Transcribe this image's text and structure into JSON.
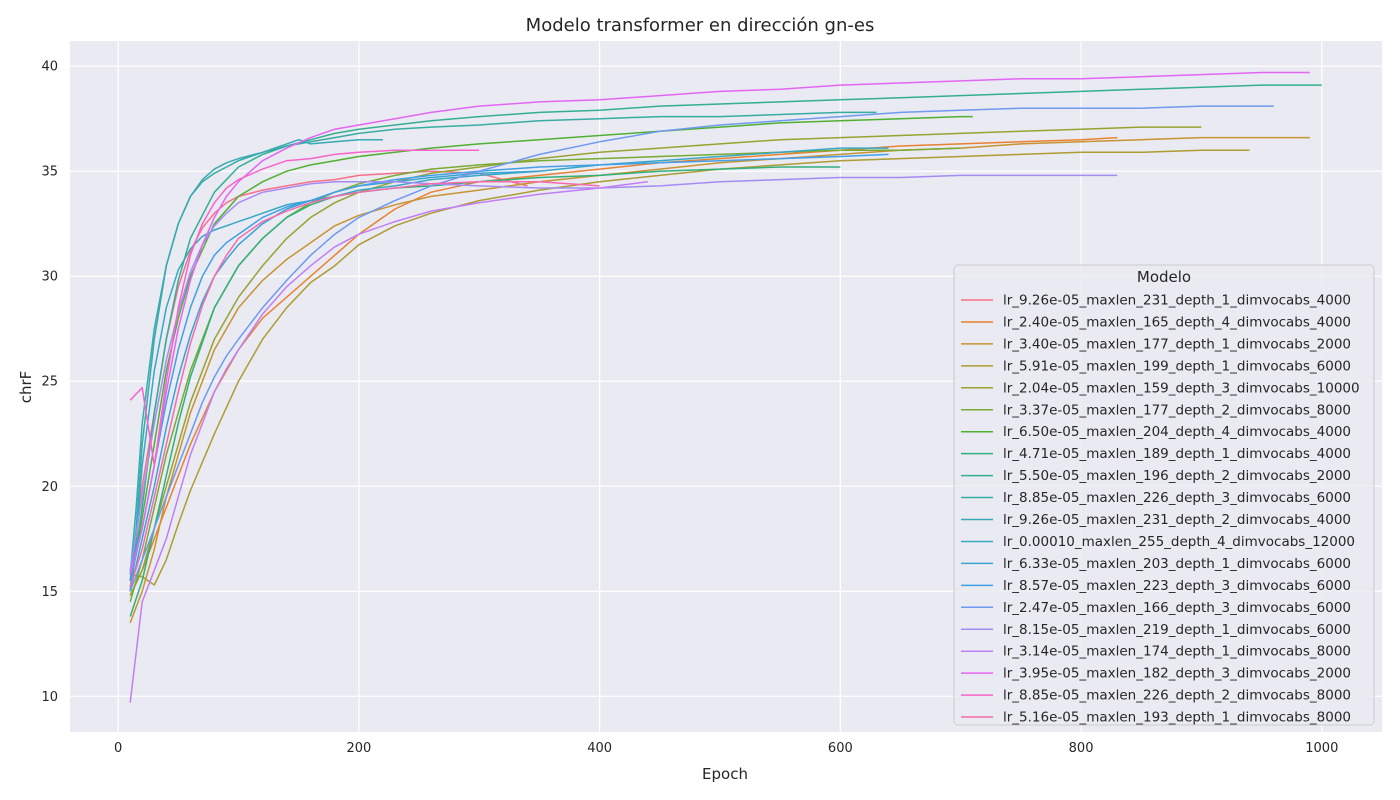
{
  "chart_data": {
    "type": "line",
    "title": "Modelo transformer en dirección gn-es",
    "xlabel": "Epoch",
    "ylabel": "chrF",
    "xlim": [
      -40,
      1050
    ],
    "ylim": [
      8.3,
      41.2
    ],
    "xticks": [
      0,
      200,
      400,
      600,
      800,
      1000
    ],
    "yticks": [
      10,
      15,
      20,
      25,
      30,
      35,
      40
    ],
    "grid": true,
    "legend_title": "Modelo",
    "legend_position": "lower-right",
    "series": [
      {
        "name": "lr_9.26e-05_maxlen_231_depth_1_dimvocabs_4000",
        "color": "#f77189",
        "x": [
          10,
          15,
          20,
          30,
          40,
          50,
          60,
          70,
          80,
          90,
          100,
          120,
          140,
          160,
          180,
          200,
          230,
          260,
          300,
          340
        ],
        "y": [
          15.5,
          17.5,
          20,
          23.5,
          27,
          29.5,
          31.2,
          32.3,
          33,
          33.5,
          33.8,
          34.1,
          34.3,
          34.5,
          34.6,
          34.8,
          34.9,
          35.0,
          34.9,
          34.3
        ]
      },
      {
        "name": "lr_2.40e-05_maxlen_165_depth_4_dimvocabs_4000",
        "color": "#e98230",
        "x": [
          10,
          20,
          30,
          40,
          50,
          60,
          80,
          100,
          120,
          140,
          160,
          180,
          200,
          230,
          260,
          300,
          350,
          400,
          450,
          500,
          550,
          600,
          650,
          700,
          750,
          800,
          830
        ],
        "y": [
          14.8,
          16,
          17.5,
          19,
          20.5,
          22,
          24.5,
          26.5,
          28,
          29,
          30,
          31,
          32,
          33.2,
          34,
          34.5,
          34.8,
          35.1,
          35.4,
          35.6,
          35.8,
          36,
          36.2,
          36.3,
          36.4,
          36.5,
          36.6
        ]
      },
      {
        "name": "lr_3.40e-05_maxlen_177_depth_1_dimvocabs_2000",
        "color": "#c69432",
        "x": [
          10,
          20,
          30,
          40,
          50,
          60,
          80,
          100,
          120,
          140,
          160,
          180,
          200,
          230,
          260,
          300,
          350,
          400,
          450,
          500,
          550,
          600,
          650,
          700,
          750,
          800,
          850,
          900,
          950,
          990
        ],
        "y": [
          13.5,
          15,
          17,
          19.5,
          21.5,
          23.5,
          26.5,
          28.5,
          29.8,
          30.8,
          31.6,
          32.4,
          32.9,
          33.4,
          33.8,
          34.1,
          34.5,
          34.8,
          35.1,
          35.4,
          35.6,
          35.8,
          36,
          36.1,
          36.3,
          36.4,
          36.5,
          36.6,
          36.6,
          36.6
        ]
      },
      {
        "name": "lr_5.91e-05_maxlen_199_depth_1_dimvocabs_6000",
        "color": "#ad9c31",
        "x": [
          10,
          20,
          30,
          40,
          50,
          60,
          80,
          100,
          120,
          140,
          160,
          180,
          200,
          230,
          260,
          300,
          350,
          400,
          450,
          500,
          550,
          600,
          650,
          700,
          750,
          800,
          850,
          900,
          940
        ],
        "y": [
          15.8,
          15.7,
          15.3,
          16.5,
          18.2,
          19.8,
          22.5,
          25,
          27,
          28.5,
          29.7,
          30.5,
          31.5,
          32.4,
          33,
          33.6,
          34.1,
          34.5,
          34.8,
          35.1,
          35.3,
          35.5,
          35.6,
          35.7,
          35.8,
          35.9,
          35.9,
          36,
          36
        ]
      },
      {
        "name": "lr_2.04e-05_maxlen_159_depth_3_dimvocabs_10000",
        "color": "#96a331",
        "x": [
          10,
          20,
          30,
          40,
          50,
          60,
          80,
          100,
          120,
          140,
          160,
          180,
          200,
          230,
          260,
          300,
          350,
          400,
          450,
          500,
          550,
          600,
          650,
          700,
          750,
          800,
          850,
          900
        ],
        "y": [
          14.8,
          16,
          18,
          20,
          22,
          24,
          27,
          29,
          30.5,
          31.8,
          32.8,
          33.5,
          34,
          34.5,
          34.9,
          35.2,
          35.6,
          35.9,
          36.1,
          36.3,
          36.5,
          36.6,
          36.7,
          36.8,
          36.9,
          37,
          37.1,
          37.1
        ]
      },
      {
        "name": "lr_3.37e-05_maxlen_177_depth_2_dimvocabs_8000",
        "color": "#77ab31",
        "x": [
          10,
          20,
          30,
          40,
          50,
          60,
          80,
          100,
          120,
          140,
          160,
          180,
          200,
          230,
          260,
          300,
          350,
          400,
          450,
          500,
          550,
          600,
          650,
          700
        ],
        "y": [
          14.5,
          16.5,
          19,
          21.5,
          23.5,
          25.5,
          28.5,
          30.5,
          31.8,
          32.8,
          33.5,
          34,
          34.4,
          34.8,
          35.1,
          35.3,
          35.5,
          35.6,
          35.7,
          35.8,
          35.9,
          36,
          36,
          36.1
        ]
      },
      {
        "name": "lr_6.50e-05_maxlen_204_depth_4_dimvocabs_4000",
        "color": "#4fb031",
        "x": [
          10,
          20,
          30,
          40,
          50,
          60,
          80,
          100,
          120,
          140,
          160,
          180,
          200,
          230,
          260,
          300,
          350,
          400,
          450,
          500,
          550,
          600,
          650,
          700,
          710
        ],
        "y": [
          15.2,
          18.5,
          22,
          25.5,
          28,
          30,
          32.5,
          33.8,
          34.5,
          35,
          35.3,
          35.5,
          35.7,
          35.9,
          36.1,
          36.3,
          36.5,
          36.7,
          36.9,
          37.1,
          37.3,
          37.4,
          37.5,
          37.6,
          37.6
        ]
      },
      {
        "name": "lr_4.71e-05_maxlen_189_depth_1_dimvocabs_4000",
        "color": "#33b07a",
        "x": [
          10,
          20,
          30,
          40,
          50,
          60,
          80,
          100,
          120,
          140,
          160,
          180,
          200,
          230,
          260,
          300,
          350,
          400,
          450,
          500,
          550,
          600
        ],
        "y": [
          13.8,
          15.5,
          18,
          20.5,
          23,
          25.2,
          28.5,
          30.5,
          31.8,
          32.8,
          33.4,
          33.8,
          34,
          34.2,
          34.3,
          34.5,
          34.7,
          34.8,
          35,
          35.1,
          35.2,
          35.2
        ]
      },
      {
        "name": "lr_5.50e-05_maxlen_196_depth_2_dimvocabs_2000",
        "color": "#34ae91",
        "x": [
          10,
          20,
          30,
          40,
          50,
          60,
          80,
          100,
          120,
          140,
          160,
          180,
          200,
          230,
          260,
          300,
          350,
          400,
          450,
          500,
          550,
          600,
          650,
          700,
          750,
          800,
          850,
          900,
          950,
          1000
        ],
        "y": [
          15,
          19,
          23.5,
          27,
          29.8,
          31.8,
          34,
          35.2,
          35.8,
          36.2,
          36.5,
          36.8,
          37,
          37.2,
          37.4,
          37.6,
          37.8,
          37.9,
          38.1,
          38.2,
          38.3,
          38.4,
          38.5,
          38.6,
          38.7,
          38.8,
          38.9,
          39,
          39.1,
          39.1
        ]
      },
      {
        "name": "lr_8.85e-05_maxlen_226_depth_3_dimvocabs_6000",
        "color": "#36ada4",
        "x": [
          10,
          15,
          20,
          30,
          40,
          50,
          60,
          70,
          80,
          90,
          100,
          120,
          140,
          160,
          180,
          200,
          230,
          260,
          300,
          350,
          400,
          450,
          500,
          550,
          600,
          630
        ],
        "y": [
          15.5,
          18,
          22,
          27,
          30.5,
          32.5,
          33.8,
          34.5,
          34.9,
          35.2,
          35.5,
          35.9,
          36.2,
          36.4,
          36.6,
          36.8,
          37,
          37.1,
          37.2,
          37.4,
          37.5,
          37.6,
          37.6,
          37.7,
          37.8,
          37.8
        ]
      },
      {
        "name": "lr_9.26e-05_maxlen_231_depth_2_dimvocabs_4000",
        "color": "#38aab5",
        "x": [
          10,
          15,
          20,
          30,
          40,
          50,
          60,
          70,
          80,
          90,
          100,
          120,
          140,
          150,
          160,
          180,
          200,
          220
        ],
        "y": [
          15.8,
          19,
          23,
          27.5,
          30.5,
          32.5,
          33.8,
          34.6,
          35.1,
          35.4,
          35.6,
          35.9,
          36.3,
          36.5,
          36.3,
          36.4,
          36.5,
          36.5
        ]
      },
      {
        "name": "lr_0.00010_maxlen_255_depth_4_dimvocabs_12000",
        "color": "#39a7c4",
        "x": [
          10,
          15,
          20,
          30,
          40,
          50,
          60,
          70,
          80,
          90,
          100,
          110,
          120,
          130,
          140,
          160,
          180,
          200,
          230,
          260,
          300,
          350,
          400,
          450,
          500,
          550,
          600,
          640
        ],
        "y": [
          15,
          17.5,
          21,
          25.5,
          28.5,
          30.3,
          31.3,
          31.9,
          32.2,
          32.4,
          32.6,
          32.8,
          33,
          33.2,
          33.4,
          33.6,
          33.8,
          34.1,
          34.3,
          34.6,
          34.8,
          35,
          35.3,
          35.5,
          35.7,
          35.9,
          36.1,
          36.1
        ]
      },
      {
        "name": "lr_6.33e-05_maxlen_203_depth_1_dimvocabs_6000",
        "color": "#3ba3d3",
        "x": [
          10,
          20,
          30,
          40,
          50,
          60,
          70,
          80,
          90,
          100,
          120,
          140,
          160,
          180,
          200,
          230,
          260,
          300,
          350
        ],
        "y": [
          15,
          17.5,
          20,
          22.8,
          25.2,
          27.2,
          28.8,
          30,
          30.8,
          31.5,
          32.5,
          33.2,
          33.6,
          34,
          34.3,
          34.5,
          34.7,
          34.9,
          35
        ]
      },
      {
        "name": "lr_8.57e-05_maxlen_223_depth_3_dimvocabs_6000",
        "color": "#41a0e7",
        "x": [
          10,
          20,
          30,
          40,
          50,
          60,
          70,
          80,
          90,
          100,
          120,
          140,
          160,
          180,
          200,
          230,
          260,
          300,
          350,
          400,
          450,
          500,
          550,
          600,
          640
        ],
        "y": [
          15.5,
          18,
          21,
          24,
          26.5,
          28.5,
          30,
          31,
          31.6,
          32,
          32.8,
          33.3,
          33.6,
          34,
          34.3,
          34.6,
          34.8,
          35,
          35.2,
          35.3,
          35.4,
          35.5,
          35.6,
          35.7,
          35.8
        ]
      },
      {
        "name": "lr_2.47e-05_maxlen_166_depth_3_dimvocabs_6000",
        "color": "#6e9af1",
        "x": [
          10,
          20,
          30,
          40,
          50,
          60,
          70,
          80,
          90,
          100,
          120,
          140,
          160,
          180,
          200,
          230,
          260,
          300,
          350,
          400,
          450,
          500,
          550,
          600,
          650,
          700,
          750,
          800,
          850,
          900,
          960
        ],
        "y": [
          15,
          16.5,
          18,
          19.5,
          21,
          22.5,
          24,
          25.2,
          26.2,
          27,
          28.5,
          29.8,
          31,
          32,
          32.8,
          33.6,
          34.3,
          35,
          35.8,
          36.4,
          36.9,
          37.2,
          37.4,
          37.6,
          37.8,
          37.9,
          38,
          38,
          38,
          38.1,
          38.1
        ]
      },
      {
        "name": "lr_8.15e-05_maxlen_219_depth_1_dimvocabs_6000",
        "color": "#a48cf4",
        "x": [
          10,
          20,
          30,
          40,
          50,
          60,
          70,
          80,
          90,
          100,
          120,
          140,
          160,
          180,
          200,
          230,
          260,
          300,
          350,
          400,
          450,
          500,
          550,
          600,
          650,
          700,
          750,
          800,
          830
        ],
        "y": [
          16,
          19.5,
          23,
          26,
          28.3,
          30.2,
          31.5,
          32.4,
          33,
          33.5,
          34,
          34.2,
          34.4,
          34.5,
          34.5,
          34.5,
          34.4,
          34.3,
          34.2,
          34.2,
          34.3,
          34.5,
          34.6,
          34.7,
          34.7,
          34.8,
          34.8,
          34.8,
          34.8
        ]
      },
      {
        "name": "lr_3.14e-05_maxlen_174_depth_1_dimvocabs_8000",
        "color": "#c27ef4",
        "x": [
          10,
          20,
          30,
          40,
          50,
          60,
          70,
          80,
          90,
          100,
          120,
          140,
          160,
          180,
          200,
          230,
          260,
          300,
          350,
          400,
          440
        ],
        "y": [
          9.7,
          14.5,
          16,
          17.5,
          19.5,
          21.5,
          23,
          24.5,
          25.6,
          26.5,
          28.2,
          29.5,
          30.5,
          31.4,
          32,
          32.6,
          33.1,
          33.5,
          33.9,
          34.2,
          34.5
        ]
      },
      {
        "name": "lr_3.95e-05_maxlen_182_depth_3_dimvocabs_2000",
        "color": "#e365f4",
        "x": [
          10,
          20,
          30,
          40,
          50,
          60,
          70,
          80,
          90,
          100,
          120,
          140,
          160,
          180,
          200,
          230,
          260,
          300,
          350,
          400,
          450,
          500,
          550,
          600,
          650,
          700,
          750,
          800,
          850,
          900,
          950,
          990
        ],
        "y": [
          15.8,
          18,
          21,
          24.5,
          27.5,
          29.8,
          31.5,
          32.8,
          33.8,
          34.5,
          35.5,
          36.1,
          36.6,
          37,
          37.2,
          37.5,
          37.8,
          38.1,
          38.3,
          38.4,
          38.6,
          38.8,
          38.9,
          39.1,
          39.2,
          39.3,
          39.4,
          39.4,
          39.5,
          39.6,
          39.7,
          39.7
        ]
      },
      {
        "name": "lr_8.85e-05_maxlen_226_depth_2_dimvocabs_8000",
        "color": "#f565cc",
        "x": [
          10,
          20,
          30,
          40,
          50,
          60,
          70,
          80,
          90,
          100,
          120,
          140,
          160,
          180,
          200,
          230,
          260,
          300
        ],
        "y": [
          24.1,
          24.7,
          21,
          25,
          28.5,
          31,
          32.5,
          33.5,
          34.2,
          34.6,
          35.1,
          35.5,
          35.6,
          35.8,
          35.9,
          36,
          36,
          36
        ]
      },
      {
        "name": "lr_5.16e-05_maxlen_193_depth_1_dimvocabs_8000",
        "color": "#f66bad",
        "x": [
          10,
          20,
          30,
          40,
          50,
          60,
          70,
          80,
          90,
          100,
          120,
          140,
          160,
          180,
          200,
          230,
          260,
          300,
          350,
          400
        ],
        "y": [
          15.2,
          17,
          19.5,
          22,
          24.5,
          26.8,
          28.6,
          30,
          31,
          31.8,
          32.6,
          33.1,
          33.5,
          33.8,
          34,
          34.2,
          34.4,
          34.5,
          34.5,
          34.3
        ]
      }
    ]
  }
}
